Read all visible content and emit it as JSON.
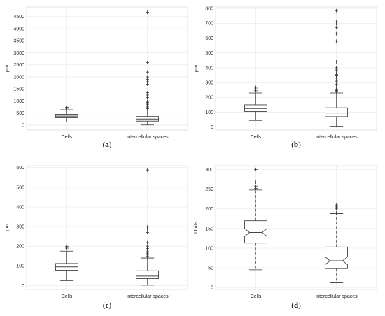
{
  "chart_data": [
    {
      "type": "box",
      "panel_label": "a",
      "ylabel": "µm",
      "categories": [
        "Cells",
        "Intercellular spaces"
      ],
      "ylim": [
        -200,
        4900
      ],
      "yticks": [
        0,
        500,
        1000,
        1500,
        2000,
        2500,
        3000,
        3500,
        4000,
        4500
      ],
      "notched": false,
      "grid": true,
      "boxes": [
        {
          "name": "Cells",
          "whisker_low": 130,
          "q1": 305,
          "median": 375,
          "q3": 450,
          "whisker_high": 640,
          "outliers": [
            700,
            740
          ]
        },
        {
          "name": "Intercellular spaces",
          "whisker_low": 10,
          "q1": 170,
          "median": 255,
          "q3": 360,
          "whisker_high": 630,
          "outliers": [
            680,
            720,
            760,
            850,
            900,
            930,
            960,
            1000,
            1150,
            1250,
            1350,
            1700,
            1800,
            1900,
            2000,
            2200,
            2600,
            4680
          ]
        }
      ]
    },
    {
      "type": "box",
      "panel_label": "b",
      "ylabel": "µm",
      "categories": [
        "Cells",
        "Intercellular spaces"
      ],
      "ylim": [
        -20,
        810
      ],
      "yticks": [
        0,
        100,
        200,
        300,
        400,
        500,
        600,
        700,
        800
      ],
      "notched": false,
      "grid": true,
      "boxes": [
        {
          "name": "Cells",
          "whisker_low": 45,
          "q1": 105,
          "median": 125,
          "q3": 150,
          "whisker_high": 230,
          "outliers": [
            245,
            258,
            268
          ]
        },
        {
          "name": "Intercellular spaces",
          "whisker_low": 5,
          "q1": 70,
          "median": 95,
          "q3": 130,
          "whisker_high": 230,
          "outliers": [
            240,
            245,
            250,
            255,
            270,
            290,
            310,
            330,
            345,
            350,
            355,
            365,
            385,
            400,
            440,
            580,
            630,
            670,
            695,
            710,
            785
          ]
        }
      ]
    },
    {
      "type": "box",
      "panel_label": "c",
      "ylabel": "µm",
      "categories": [
        "Cells",
        "Intercellular spaces"
      ],
      "ylim": [
        -20,
        610
      ],
      "yticks": [
        0,
        100,
        200,
        300,
        400,
        500,
        600
      ],
      "notched": false,
      "grid": true,
      "boxes": [
        {
          "name": "Cells",
          "whisker_low": 25,
          "q1": 78,
          "median": 95,
          "q3": 112,
          "whisker_high": 175,
          "outliers": [
            190,
            198
          ]
        },
        {
          "name": "Intercellular spaces",
          "whisker_low": 2,
          "q1": 35,
          "median": 48,
          "q3": 75,
          "whisker_high": 140,
          "outliers": [
            150,
            158,
            165,
            172,
            180,
            188,
            200,
            218,
            270,
            288,
            298,
            588
          ]
        }
      ]
    },
    {
      "type": "box",
      "panel_label": "d",
      "ylabel": "Units",
      "categories": [
        "Cells",
        "Intercellular spaces"
      ],
      "ylim": [
        -5,
        310
      ],
      "yticks": [
        0,
        50,
        100,
        150,
        200,
        250,
        300
      ],
      "notched": true,
      "grid": true,
      "boxes": [
        {
          "name": "Cells",
          "whisker_low": 45,
          "q1": 113,
          "median": 140,
          "q3": 170,
          "whisker_high": 248,
          "notch": [
            130,
            150
          ],
          "outliers": [
            252,
            258,
            268,
            300
          ]
        },
        {
          "name": "Intercellular spaces",
          "whisker_low": 12,
          "q1": 48,
          "median": 68,
          "q3": 103,
          "whisker_high": 188,
          "notch": [
            58,
            78
          ],
          "outliers": [
            190,
            200,
            205,
            210
          ]
        }
      ]
    }
  ]
}
